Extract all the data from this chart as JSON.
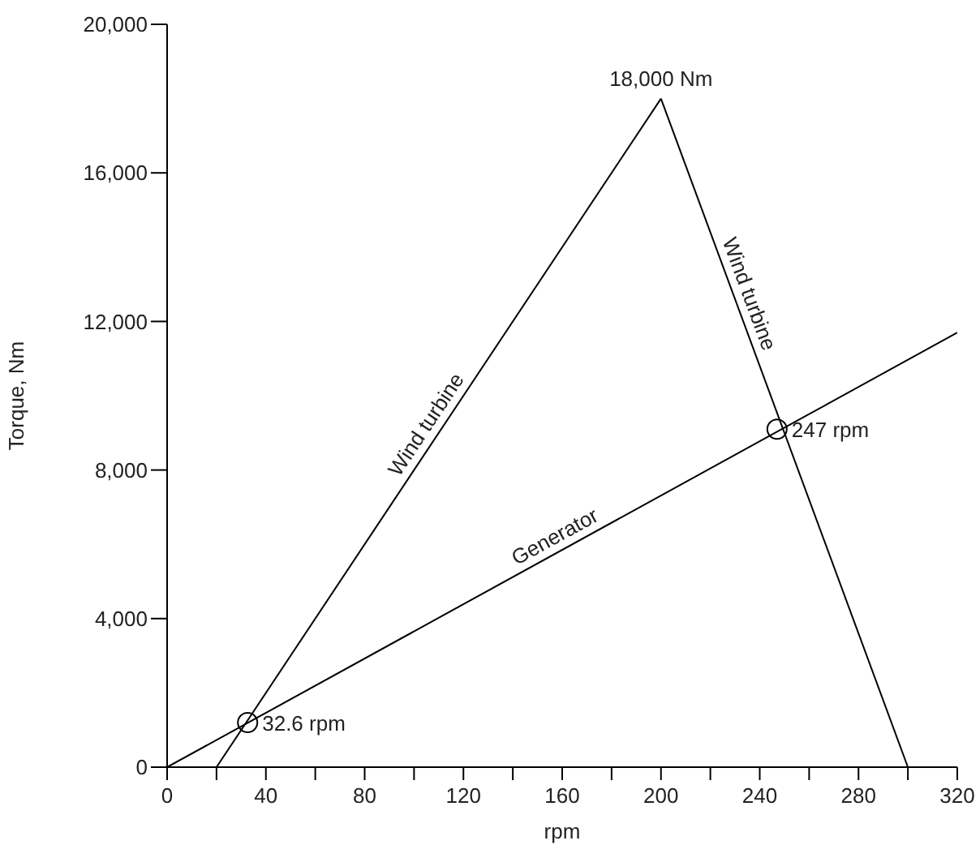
{
  "chart_data": {
    "type": "line",
    "xlabel": "rpm",
    "ylabel": "Torque,  Nm",
    "xlim": [
      0,
      320
    ],
    "xticks": [
      0,
      {
        "value": 20,
        "label": null
      },
      40,
      {
        "value": 60,
        "label": null
      },
      80,
      {
        "value": 100,
        "label": null
      },
      120,
      {
        "value": 140,
        "label": null
      },
      160,
      {
        "value": 180,
        "label": null
      },
      200,
      {
        "value": 220,
        "label": null
      },
      240,
      {
        "value": 260,
        "label": null
      },
      280,
      {
        "value": 300,
        "label": null
      },
      320
    ],
    "ylim": [
      0,
      20000
    ],
    "yticks": [
      {
        "value": 0,
        "label": "0"
      },
      {
        "value": 4000,
        "label": "4,000"
      },
      {
        "value": 8000,
        "label": "8,000"
      },
      {
        "value": 12000,
        "label": "12,000"
      },
      {
        "value": 16000,
        "label": "16,000"
      },
      {
        "value": 20000,
        "label": "20,000"
      }
    ],
    "grid": false,
    "legend": false,
    "line_style": "solid",
    "series": [
      {
        "name": "Wind turbine",
        "type": "line",
        "marker": "none",
        "color": "#000000",
        "x": [
          20,
          200
        ],
        "values": [
          0,
          18000
        ]
      },
      {
        "name": "Wind turbine",
        "type": "line",
        "marker": "none",
        "color": "#000000",
        "x": [
          200,
          300
        ],
        "values": [
          18000,
          0
        ]
      },
      {
        "name": "Generator",
        "type": "line",
        "marker": "none",
        "color": "#000000",
        "x": [
          0,
          320
        ],
        "values": [
          0,
          11700
        ]
      },
      {
        "type": "scatter",
        "marker": "circle",
        "color": "#000000",
        "x": [
          32.6,
          247
        ],
        "values": [
          1200,
          9100
        ]
      }
    ],
    "annotations": [
      {
        "text": "18,000 Nm",
        "x": 200,
        "y": 18000
      },
      {
        "text": "32.6 rpm",
        "x": 32.6,
        "y": 1200
      },
      {
        "text": "247 rpm",
        "x": 247,
        "y": 9100
      }
    ]
  }
}
